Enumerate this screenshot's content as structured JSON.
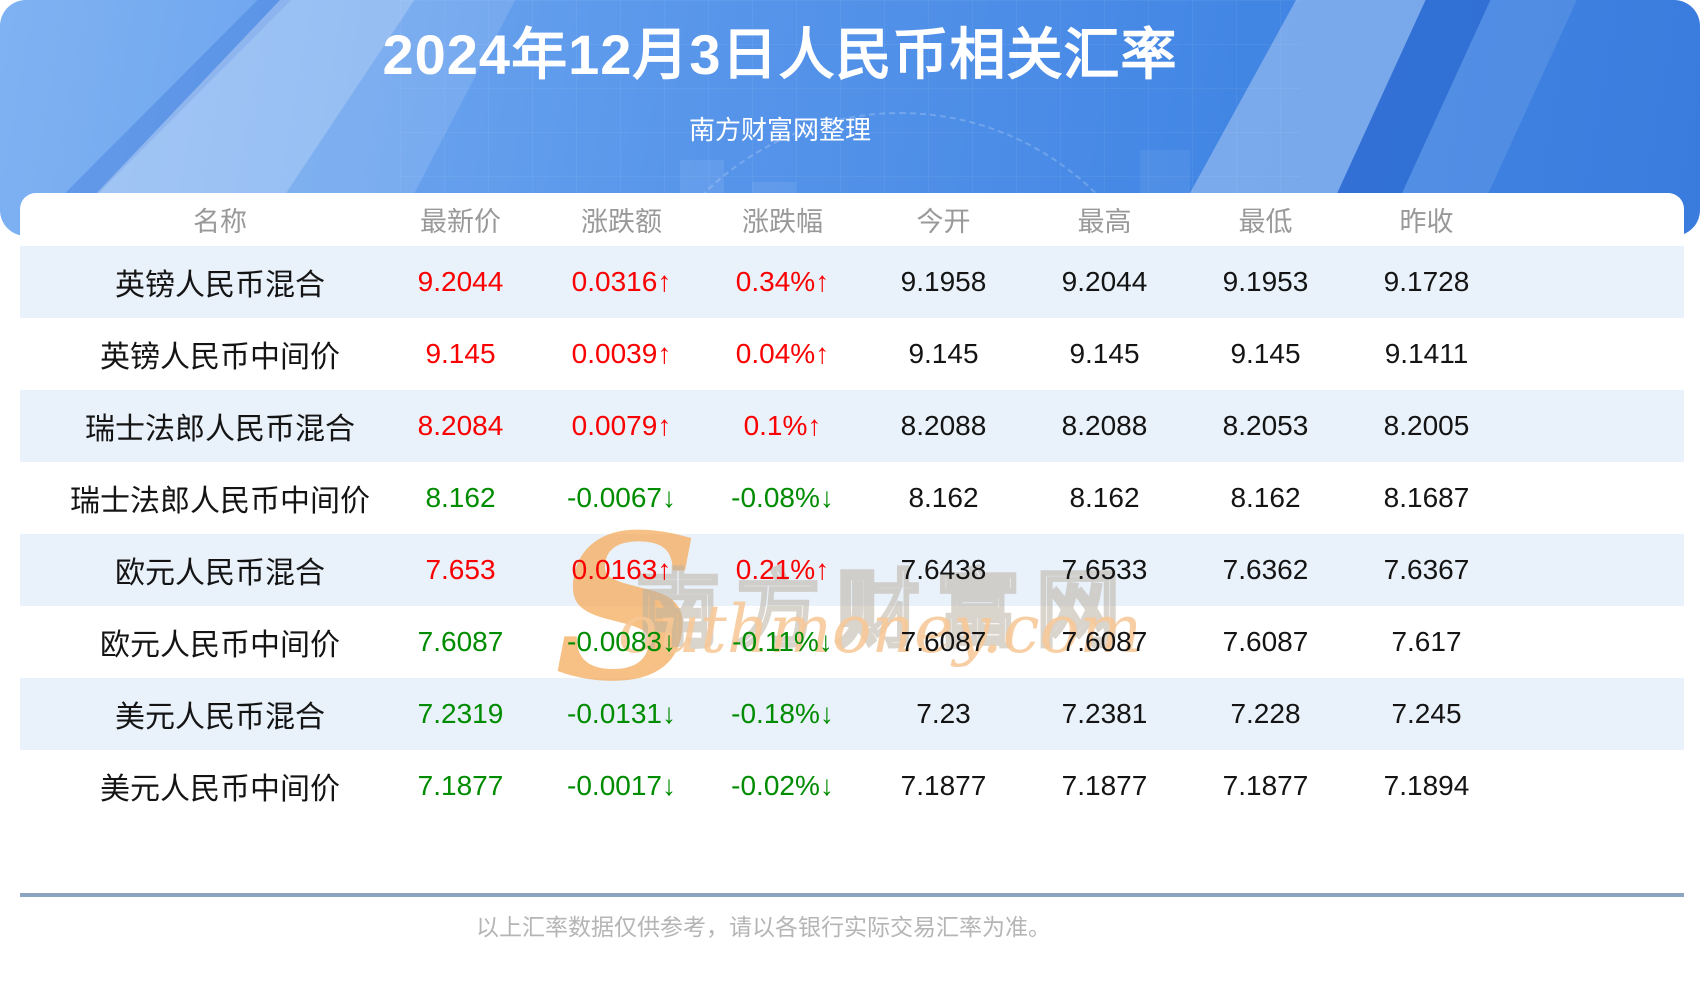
{
  "page": {
    "title": "2024年12月3日人民币相关汇率",
    "subtitle": "南方财富网整理",
    "footer_note": "以上汇率数据仅供参考，请以各银行实际交易汇率为准。"
  },
  "watermark": {
    "initial": "S",
    "cn": "南方财富网",
    "en": "outhmoney.com"
  },
  "colors": {
    "up": "#fa0000",
    "down": "#008c00",
    "stripe": "#e9f1fa",
    "divider": "#8ba4bf",
    "accent": "#4e90e8"
  },
  "chart_data": {
    "type": "table",
    "title": "2024年12月3日人民币相关汇率",
    "columns": [
      "名称",
      "最新价",
      "涨跌额",
      "涨跌幅",
      "今开",
      "最高",
      "最低",
      "昨收"
    ],
    "rows": [
      {
        "name": "英镑人民币混合",
        "latest": "9.2044",
        "change": "0.0316↑",
        "change_pct": "0.34%↑",
        "trend": "up",
        "open": "9.1958",
        "high": "9.2044",
        "low": "9.1953",
        "prev_close": "9.1728"
      },
      {
        "name": "英镑人民币中间价",
        "latest": "9.145",
        "change": "0.0039↑",
        "change_pct": "0.04%↑",
        "trend": "up",
        "open": "9.145",
        "high": "9.145",
        "low": "9.145",
        "prev_close": "9.1411"
      },
      {
        "name": "瑞士法郎人民币混合",
        "latest": "8.2084",
        "change": "0.0079↑",
        "change_pct": "0.1%↑",
        "trend": "up",
        "open": "8.2088",
        "high": "8.2088",
        "low": "8.2053",
        "prev_close": "8.2005"
      },
      {
        "name": "瑞士法郎人民币中间价",
        "latest": "8.162",
        "change": "-0.0067↓",
        "change_pct": "-0.08%↓",
        "trend": "down",
        "open": "8.162",
        "high": "8.162",
        "low": "8.162",
        "prev_close": "8.1687"
      },
      {
        "name": "欧元人民币混合",
        "latest": "7.653",
        "change": "0.0163↑",
        "change_pct": "0.21%↑",
        "trend": "up",
        "open": "7.6438",
        "high": "7.6533",
        "low": "7.6362",
        "prev_close": "7.6367"
      },
      {
        "name": "欧元人民币中间价",
        "latest": "7.6087",
        "change": "-0.0083↓",
        "change_pct": "-0.11%↓",
        "trend": "down",
        "open": "7.6087",
        "high": "7.6087",
        "low": "7.6087",
        "prev_close": "7.617"
      },
      {
        "name": "美元人民币混合",
        "latest": "7.2319",
        "change": "-0.0131↓",
        "change_pct": "-0.18%↓",
        "trend": "down",
        "open": "7.23",
        "high": "7.2381",
        "low": "7.228",
        "prev_close": "7.245"
      },
      {
        "name": "美元人民币中间价",
        "latest": "7.1877",
        "change": "-0.0017↓",
        "change_pct": "-0.02%↓",
        "trend": "down",
        "open": "7.1877",
        "high": "7.1877",
        "low": "7.1877",
        "prev_close": "7.1894"
      }
    ]
  }
}
